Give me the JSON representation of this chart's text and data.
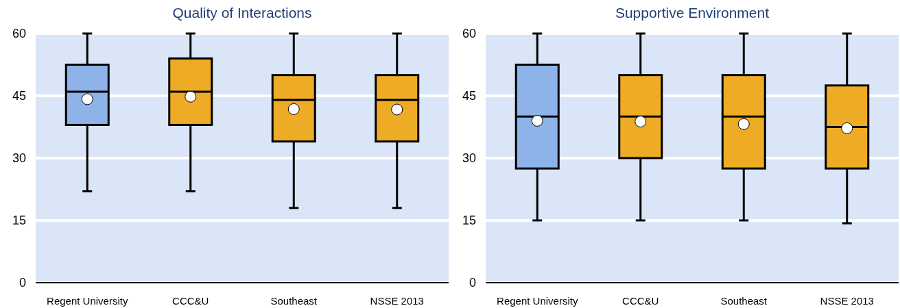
{
  "chart_data": [
    {
      "type": "box",
      "title": "Quality of Interactions",
      "categories": [
        "Regent University",
        "CCC&U",
        "Southeast",
        "NSSE 2013"
      ],
      "colors": [
        "#8db3e9",
        "#eeab25",
        "#eeab25",
        "#eeab25"
      ],
      "boxes": [
        {
          "low": 22,
          "q1": 38,
          "median": 46,
          "q3": 52.5,
          "high": 60,
          "mean": 44.2
        },
        {
          "low": 22,
          "q1": 38,
          "median": 46,
          "q3": 54,
          "high": 60,
          "mean": 44.8
        },
        {
          "low": 18,
          "q1": 34,
          "median": 44,
          "q3": 50,
          "high": 60,
          "mean": 41.8
        },
        {
          "low": 18,
          "q1": 34,
          "median": 44,
          "q3": 50,
          "high": 60,
          "mean": 41.7
        }
      ],
      "ylim": [
        0,
        60
      ],
      "yticks": [
        0,
        15,
        30,
        45,
        60
      ],
      "grid": "y"
    },
    {
      "type": "box",
      "title": "Supportive Environment",
      "categories": [
        "Regent University",
        "CCC&U",
        "Southeast",
        "NSSE 2013"
      ],
      "colors": [
        "#8db3e9",
        "#eeab25",
        "#eeab25",
        "#eeab25"
      ],
      "boxes": [
        {
          "low": 15,
          "q1": 27.5,
          "median": 40,
          "q3": 52.5,
          "high": 60,
          "mean": 39
        },
        {
          "low": 15,
          "q1": 30,
          "median": 40,
          "q3": 50,
          "high": 60,
          "mean": 38.8
        },
        {
          "low": 15,
          "q1": 27.5,
          "median": 40,
          "q3": 50,
          "high": 60,
          "mean": 38.2
        },
        {
          "low": 14.3,
          "q1": 27.5,
          "median": 37.5,
          "q3": 47.5,
          "high": 60,
          "mean": 37.2
        }
      ],
      "ylim": [
        0,
        60
      ],
      "yticks": [
        0,
        15,
        30,
        45,
        60
      ],
      "grid": "y"
    }
  ]
}
